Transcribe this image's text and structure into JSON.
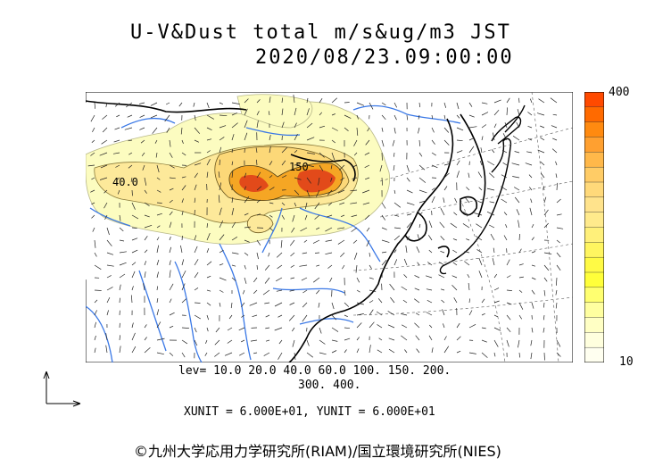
{
  "header": {
    "title": "U-V&Dust total m/s&ug/m3 JST",
    "datetime": "2020/08/23.09:00:00"
  },
  "map": {
    "contour_labels": [
      "40.0",
      "150"
    ],
    "colors": {
      "land_fill": "#f2f2c4",
      "dust_low": "#fcfcb0",
      "dust_mid": "#fde68a",
      "dust_orange": "#f59e0b",
      "dust_red": "#e0401a",
      "rivers": "#3a78e6",
      "coast": "#000000"
    }
  },
  "colorbar": {
    "max_label": "400",
    "min_label": "10",
    "colors": [
      "#ff4a00",
      "#ff6a00",
      "#ff8a10",
      "#ffa030",
      "#ffb84a",
      "#ffcc66",
      "#ffd97a",
      "#ffe38c",
      "#ffea8c",
      "#fff07a",
      "#fff560",
      "#fffa45",
      "#ffff3a",
      "#ffff70",
      "#ffffa0",
      "#ffffc4",
      "#ffffde",
      "#fffff0"
    ]
  },
  "levels": {
    "line1": "lev= 10.0 20.0 40.0 60.0 100. 150. 200.",
    "line2": "300. 400."
  },
  "units": "XUNIT = 6.000E+01, YUNIT = 6.000E+01",
  "copyright": "©九州大学応用力学研究所(RIAM)/国立環境研究所(NIES)"
}
